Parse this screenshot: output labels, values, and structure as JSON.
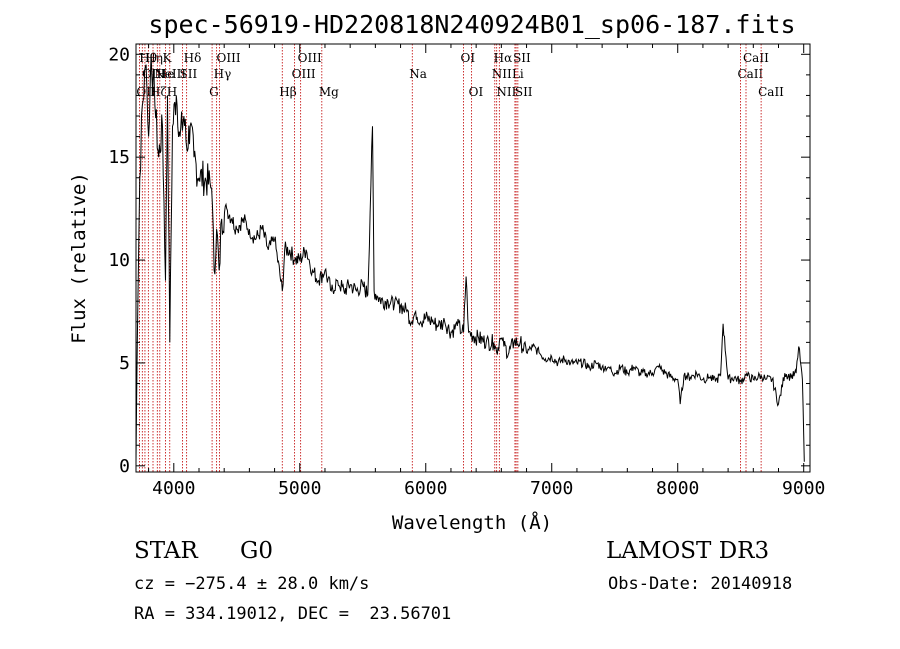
{
  "chart_data": {
    "type": "line",
    "title": "spec-56919-HD220818N240924B01_sp06-187.fits",
    "xlabel": "Wavelength (Å)",
    "ylabel": "Flux (relative)",
    "xlim": [
      3700,
      9050
    ],
    "ylim": [
      -0.3,
      20.5
    ],
    "xticks": [
      4000,
      5000,
      6000,
      7000,
      8000,
      9000
    ],
    "xtick_labels": [
      "4000",
      "5000",
      "6000",
      "7000",
      "8000",
      "9000"
    ],
    "yticks": [
      0,
      5,
      10,
      15,
      20
    ],
    "ytick_labels": [
      "0",
      "5",
      "10",
      "15",
      "20"
    ],
    "series": [
      {
        "name": "flux",
        "x": [
          3700,
          3710,
          3730,
          3750,
          3780,
          3800,
          3820,
          3850,
          3880,
          3910,
          3934,
          3950,
          3968,
          3990,
          4020,
          4050,
          4080,
          4102,
          4130,
          4160,
          4200,
          4250,
          4300,
          4320,
          4340,
          4360,
          4380,
          4420,
          4460,
          4500,
          4550,
          4600,
          4650,
          4700,
          4750,
          4800,
          4861,
          4880,
          4920,
          4960,
          5000,
          5050,
          5100,
          5150,
          5200,
          5250,
          5300,
          5350,
          5400,
          5450,
          5500,
          5540,
          5577,
          5590,
          5620,
          5660,
          5700,
          5750,
          5800,
          5850,
          5890,
          5920,
          5960,
          6000,
          6050,
          6100,
          6150,
          6200,
          6250,
          6300,
          6320,
          6340,
          6380,
          6420,
          6480,
          6540,
          6563,
          6590,
          6620,
          6660,
          6700,
          6750,
          6800,
          6850,
          6900,
          6950,
          7000,
          7050,
          7100,
          7150,
          7200,
          7250,
          7300,
          7350,
          7400,
          7450,
          7500,
          7550,
          7600,
          7650,
          7700,
          7750,
          7800,
          7850,
          7900,
          7950,
          8000,
          8020,
          8050,
          8100,
          8150,
          8200,
          8250,
          8300,
          8340,
          8360,
          8400,
          8450,
          8498,
          8542,
          8600,
          8662,
          8700,
          8750,
          8800,
          8850,
          8900,
          8940,
          8960,
          8980,
          8990,
          9000,
          9005
        ],
        "y": [
          0.2,
          6,
          14,
          17.5,
          19.5,
          16,
          20,
          17.5,
          15,
          16.5,
          9,
          18,
          6,
          16.5,
          18,
          16,
          17,
          15.5,
          16.5,
          15,
          14,
          14,
          13.5,
          9.5,
          11.5,
          9.5,
          12,
          12.5,
          12,
          11.5,
          12,
          11.5,
          11,
          11.5,
          10.5,
          11,
          8.5,
          10.5,
          10.5,
          10,
          10,
          10.5,
          9.5,
          9,
          9.5,
          8.5,
          9,
          8.5,
          8.8,
          8.5,
          8.8,
          8.3,
          16.5,
          8.5,
          8.2,
          8,
          8,
          7.8,
          7.8,
          7.5,
          7,
          7.5,
          7,
          7.2,
          7,
          6.8,
          7,
          6.5,
          6.8,
          6.5,
          9.2,
          6.5,
          6.3,
          6.2,
          6,
          6,
          5.5,
          6.2,
          5.8,
          5.5,
          6,
          6,
          5.5,
          5.8,
          5.5,
          5.2,
          5.3,
          5,
          5.2,
          5,
          5,
          5,
          4.8,
          5,
          4.8,
          4.8,
          4.5,
          4.8,
          4.5,
          4.8,
          4.5,
          4.5,
          4.5,
          4.8,
          4.5,
          4.3,
          4.2,
          3,
          4.4,
          4.3,
          4.5,
          4.2,
          4.3,
          4.1,
          4.4,
          6.9,
          4.2,
          4.3,
          4.1,
          4.4,
          4.2,
          4.4,
          4.2,
          4.2,
          3,
          4.5,
          4.3,
          4.5,
          5.8,
          4.8,
          4.2,
          1.5,
          0.2
        ]
      }
    ],
    "lines": [
      {
        "x": 3727,
        "label": "OII",
        "row": 3
      },
      {
        "x": 3750,
        "label": "Hθ",
        "row": 1
      },
      {
        "x": 3771,
        "label": "OIII",
        "row": 2
      },
      {
        "x": 3798,
        "label": "Hη",
        "row": 1
      },
      {
        "x": 3835,
        "label": "Hζ",
        "row": 3
      },
      {
        "x": 3869,
        "label": "NeIII",
        "row": 2
      },
      {
        "x": 3889,
        "label": "He",
        "row": 2
      },
      {
        "x": 3934,
        "label": "K",
        "row": 1
      },
      {
        "x": 3968,
        "label": "H",
        "row": 3
      },
      {
        "x": 4069,
        "label": "SII",
        "row": 2
      },
      {
        "x": 4102,
        "label": "Hδ",
        "row": 1
      },
      {
        "x": 4304,
        "label": "G",
        "row": 3
      },
      {
        "x": 4340,
        "label": "Hγ",
        "row": 2
      },
      {
        "x": 4363,
        "label": "OIII",
        "row": 1
      },
      {
        "x": 4861,
        "label": "Hβ",
        "row": 3
      },
      {
        "x": 4959,
        "label": "OIII",
        "row": 2
      },
      {
        "x": 5007,
        "label": "OIII",
        "row": 1
      },
      {
        "x": 5175,
        "label": "Mg",
        "row": 3
      },
      {
        "x": 5893,
        "label": "Na",
        "row": 2
      },
      {
        "x": 6300,
        "label": "OI",
        "row": 1
      },
      {
        "x": 6364,
        "label": "OI",
        "row": 3
      },
      {
        "x": 6548,
        "label": "NII",
        "row": 2
      },
      {
        "x": 6563,
        "label": "Hα",
        "row": 1
      },
      {
        "x": 6584,
        "label": "NII",
        "row": 3
      },
      {
        "x": 6708,
        "label": "Li",
        "row": 2
      },
      {
        "x": 6717,
        "label": "SII",
        "row": 1
      },
      {
        "x": 6731,
        "label": "SII",
        "row": 3
      },
      {
        "x": 8498,
        "label": "CaII",
        "row": 2
      },
      {
        "x": 8542,
        "label": "CaII",
        "row": 1
      },
      {
        "x": 8662,
        "label": "CaII",
        "row": 3
      }
    ]
  },
  "info": {
    "class_label": "STAR",
    "subclass": "G0",
    "survey": "LAMOST DR3",
    "cz": "cz = −275.4 ± 28.0 km/s",
    "obs_date": "Obs-Date: 20140918",
    "coords": "RA = 334.19012, DEC =  23.56701"
  },
  "colors": {
    "axis": "#000000",
    "spectrum": "#000000",
    "line_markers": "#c00000",
    "background": "#ffffff"
  }
}
